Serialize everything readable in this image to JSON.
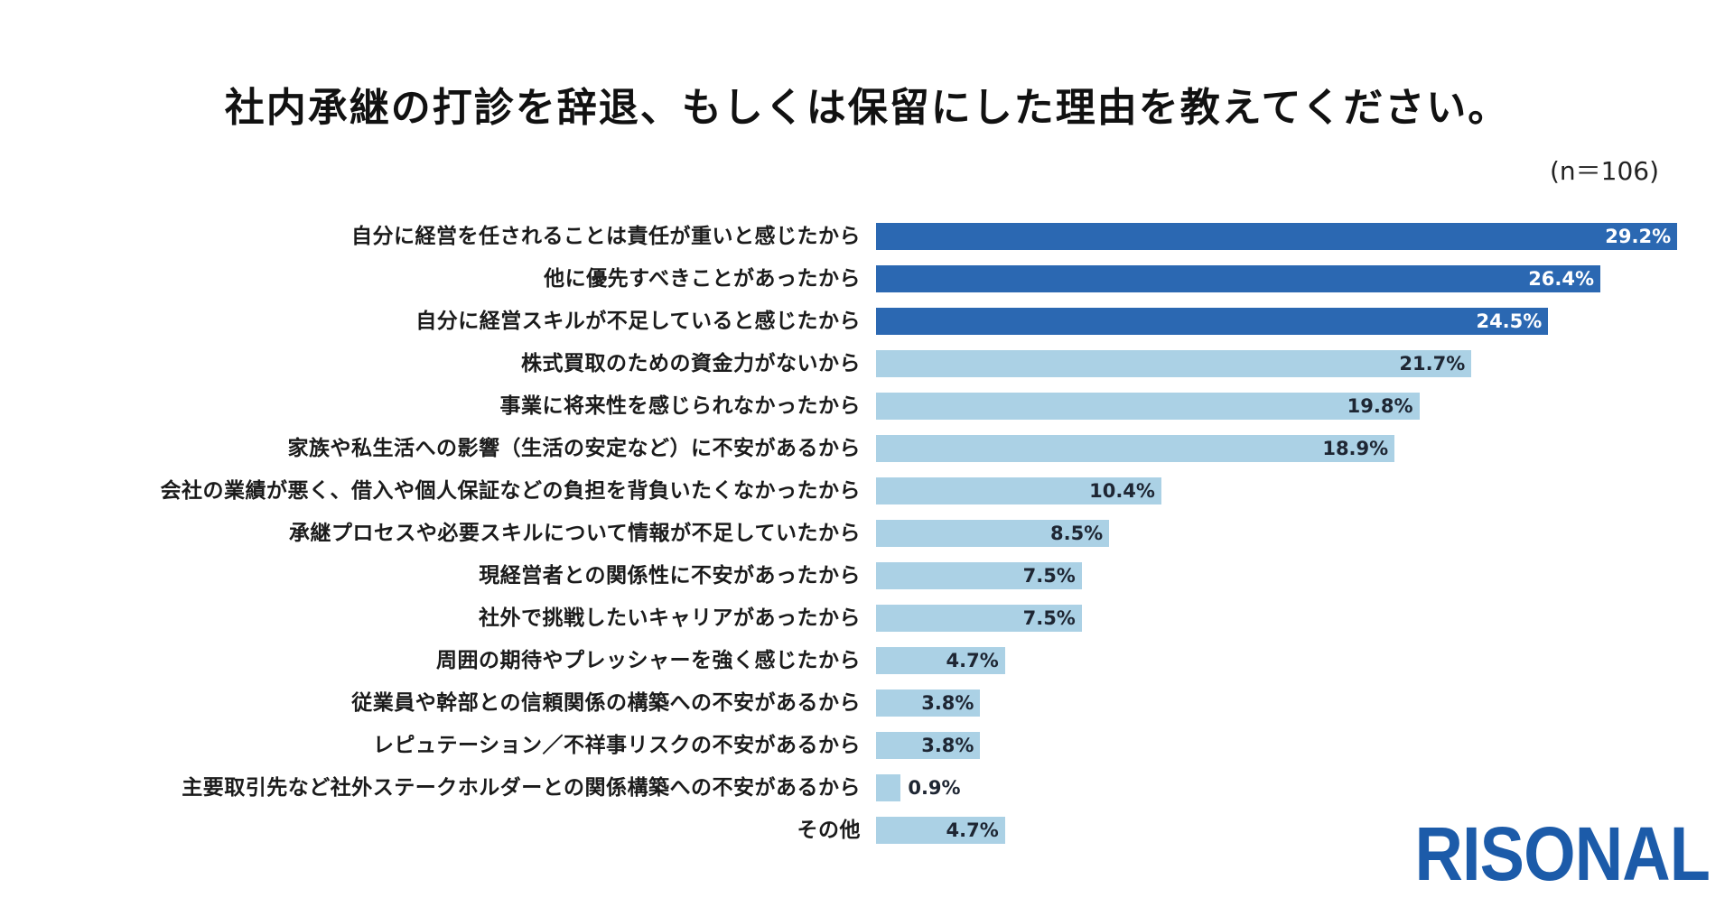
{
  "chart_data": {
    "type": "bar",
    "orientation": "horizontal",
    "title": "社内承継の打診を辞退、もしくは保留にした理由を教えてください。",
    "note": "(n＝106)",
    "xlabel": "",
    "ylabel": "",
    "grid": false,
    "legend": "none",
    "value_unit": "%",
    "xlim": [
      0,
      29.2
    ],
    "categories": [
      "自分に経営を任されることは責任が重いと感じたから",
      "他に優先すべきことがあったから",
      "自分に経営スキルが不足していると感じたから",
      "株式買取のための資金力がないから",
      "事業に将来性を感じられなかったから",
      "家族や私生活への影響（生活の安定など）に不安があるから",
      "会社の業績が悪く、借入や個人保証などの負担を背負いたくなかったから",
      "承継プロセスや必要スキルについて情報が不足していたから",
      "現経営者との関係性に不安があったから",
      "社外で挑戦したいキャリアがあったから",
      "周囲の期待やプレッシャーを強く感じたから",
      "従業員や幹部との信頼関係の構築への不安があるから",
      "レピュテーション／不祥事リスクの不安があるから",
      "主要取引先など社外ステークホルダーとの関係構築への不安があるから",
      "その他"
    ],
    "values": [
      29.2,
      26.4,
      24.5,
      21.7,
      19.8,
      18.9,
      10.4,
      8.5,
      7.5,
      7.5,
      4.7,
      3.8,
      3.8,
      0.9,
      4.7
    ],
    "highlighted": [
      true,
      true,
      true,
      false,
      false,
      false,
      false,
      false,
      false,
      false,
      false,
      false,
      false,
      false,
      false
    ],
    "colors": {
      "highlight_bar": "#2b68b2",
      "normal_bar": "#abd1e5",
      "highlight_value_text": "#ffffff",
      "normal_value_text": "#1e2633"
    }
  },
  "logo": {
    "text": "RISONAL",
    "color": "#1c5ba9"
  }
}
